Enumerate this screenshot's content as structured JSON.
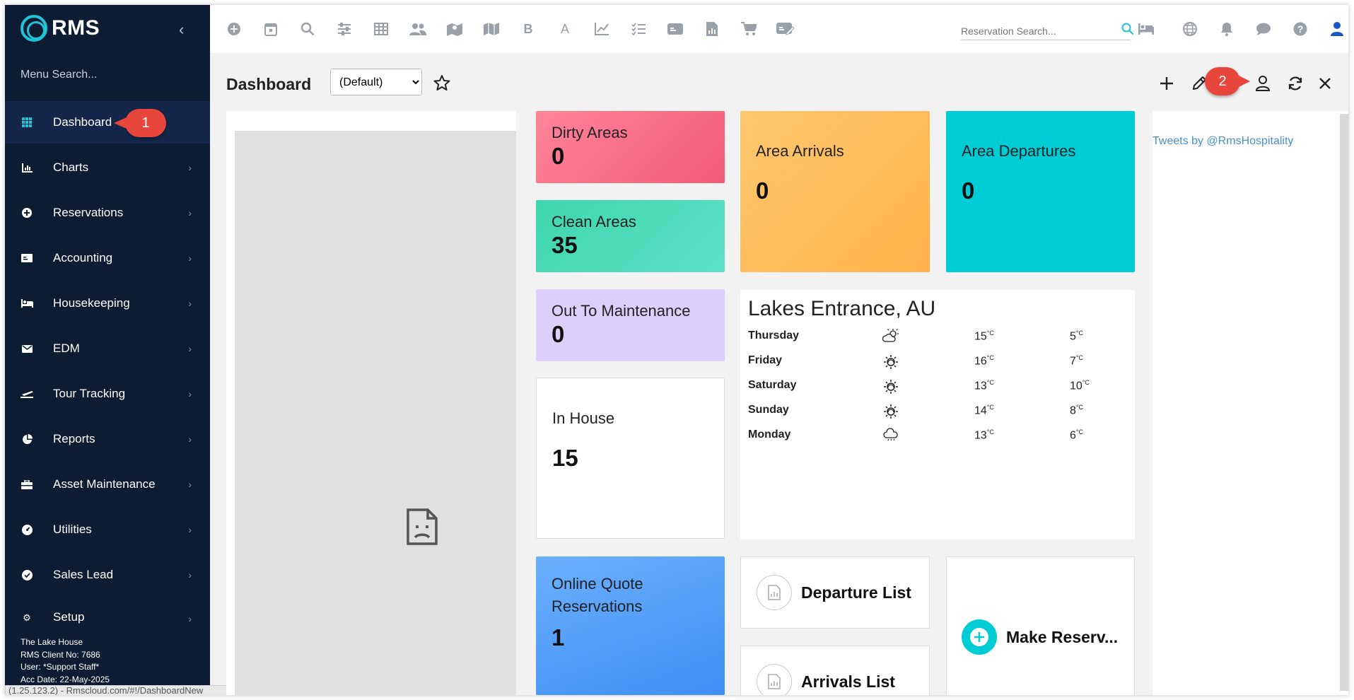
{
  "app": {
    "logo_text": "RMS",
    "brand_color": "#1ec5d6",
    "sidebar_bg": "#0c1c33"
  },
  "sidebar": {
    "menu_search": "Menu Search...",
    "items": [
      {
        "label": "Dashboard",
        "icon": "grid-icon",
        "active": true
      },
      {
        "label": "Charts",
        "icon": "bar-chart-icon"
      },
      {
        "label": "Reservations",
        "icon": "plus-circle-icon"
      },
      {
        "label": "Accounting",
        "icon": "money-icon"
      },
      {
        "label": "Housekeeping",
        "icon": "bed-icon"
      },
      {
        "label": "EDM",
        "icon": "envelope-icon"
      },
      {
        "label": "Tour Tracking",
        "icon": "plane-icon"
      },
      {
        "label": "Reports",
        "icon": "pie-chart-icon"
      },
      {
        "label": "Asset Maintenance",
        "icon": "toolbox-icon"
      },
      {
        "label": "Utilities",
        "icon": "dashboard-gauge-icon"
      },
      {
        "label": "Sales Lead",
        "icon": "check-circle-icon"
      },
      {
        "label": "Setup",
        "icon": "cog-icon"
      }
    ],
    "footer": {
      "property": "The Lake House",
      "client_no": "RMS Client No: 7686",
      "user": "User: *Support Staff*",
      "acc_date": "Acc Date: 22-May-2025"
    },
    "status_url": "(1.25.123.2) - Rmscloud.com/#!/DashboardNew"
  },
  "callouts": {
    "one": "1",
    "two": "2"
  },
  "topbar": {
    "search_placeholder": "Reservation Search...",
    "letter_b": "B",
    "letter_a": "A"
  },
  "dashboard": {
    "title": "Dashboard",
    "layout_options": [
      "(Default)"
    ],
    "selected_layout": "(Default)"
  },
  "tiles": {
    "dirty": {
      "title": "Dirty Areas",
      "value": "0"
    },
    "clean": {
      "title": "Clean Areas",
      "value": "35"
    },
    "maintenance": {
      "title": "Out To Maintenance",
      "value": "0"
    },
    "in_house": {
      "title": "In House",
      "value": "15"
    },
    "online_quote": {
      "title_line1": "Online Quote",
      "title_line2": "Reservations",
      "value": "1"
    },
    "arrivals": {
      "title": "Area Arrivals",
      "value": "0"
    },
    "departures": {
      "title": "Area Departures",
      "value": "0"
    }
  },
  "weather": {
    "city": "Lakes Entrance, AU",
    "unit": "°C",
    "days": [
      {
        "day": "Thursday",
        "icon": "cloud-sun-icon",
        "high": "15",
        "low": "5"
      },
      {
        "day": "Friday",
        "icon": "sun-icon",
        "high": "16",
        "low": "7"
      },
      {
        "day": "Saturday",
        "icon": "sun-icon",
        "high": "13",
        "low": "10"
      },
      {
        "day": "Sunday",
        "icon": "sun-icon",
        "high": "14",
        "low": "8"
      },
      {
        "day": "Monday",
        "icon": "cloud-rain-icon",
        "high": "13",
        "low": "6"
      }
    ]
  },
  "actions": {
    "departure_list": "Departure List",
    "arrivals_list": "Arrivals List",
    "make_reservation": "Make Reserv..."
  },
  "twitter": {
    "link": "Tweets by @RmsHospitality"
  }
}
